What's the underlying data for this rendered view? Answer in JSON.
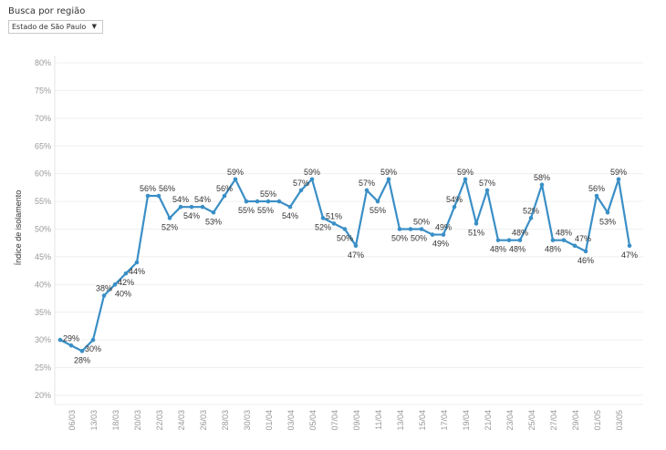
{
  "filter": {
    "label": "Busca por região",
    "selected": "Estado de São Paulo",
    "icon": "dropdown-arrow-icon"
  },
  "chart_data": {
    "type": "line",
    "title": "",
    "xlabel": "",
    "ylabel": "Índice de isolamento",
    "ylim": [
      20,
      80
    ],
    "yticks": [
      "20%",
      "25%",
      "30%",
      "35%",
      "40%",
      "45%",
      "50%",
      "55%",
      "60%",
      "65%",
      "70%",
      "75%",
      "80%"
    ],
    "ytick_values": [
      20,
      25,
      30,
      35,
      40,
      45,
      50,
      55,
      60,
      65,
      70,
      75,
      80
    ],
    "x_tick_labels": [
      "",
      "06/03",
      "",
      "13/03",
      "",
      "18/03",
      "",
      "20/03",
      "",
      "22/03",
      "",
      "24/03",
      "",
      "26/03",
      "",
      "28/03",
      "",
      "30/03",
      "",
      "01/04",
      "",
      "03/04",
      "",
      "05/04",
      "",
      "07/04",
      "",
      "09/04",
      "",
      "11/04",
      "",
      "13/04",
      "",
      "15/04",
      "",
      "17/04",
      "",
      "19/04",
      "",
      "21/04",
      "",
      "23/04",
      "",
      "25/04",
      "",
      "27/04",
      "",
      "29/04",
      "",
      "01/05",
      "",
      "03/05",
      ""
    ],
    "series": [
      {
        "name": "Índice de isolamento",
        "color": "#3a8fc6",
        "values": [
          30,
          29,
          28,
          30,
          38,
          40,
          42,
          44,
          56,
          56,
          52,
          54,
          54,
          54,
          53,
          56,
          59,
          55,
          55,
          55,
          55,
          54,
          57,
          59,
          52,
          51,
          50,
          47,
          57,
          55,
          59,
          50,
          50,
          50,
          49,
          49,
          54,
          59,
          51,
          57,
          48,
          48,
          48,
          52,
          58,
          48,
          48,
          47,
          46,
          56,
          53,
          59,
          47
        ],
        "labels": [
          "",
          "29%",
          "28%",
          "30%",
          "38%",
          "40%",
          "42%",
          "44%",
          "56%",
          "56%",
          "52%",
          "54%",
          "54%",
          "54%",
          "53%",
          "56%",
          "59%",
          "55%",
          "55%",
          "55%",
          "",
          "54%",
          "57%",
          "59%",
          "52%",
          "51%",
          "50%",
          "47%",
          "57%",
          "55%",
          "59%",
          "50%",
          "50%",
          "50%",
          "49%",
          "49%",
          "54%",
          "59%",
          "51%",
          "57%",
          "48%",
          "48%",
          "48%",
          "52%",
          "58%",
          "48%",
          "48%",
          "47%",
          "46%",
          "56%",
          "53%",
          "59%",
          "47%"
        ]
      }
    ],
    "grid": true,
    "legend": "none"
  }
}
